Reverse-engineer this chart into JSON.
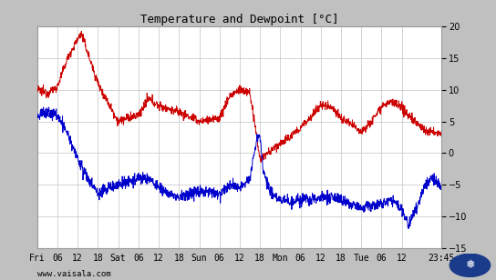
{
  "title": "Temperature and Dewpoint [°C]",
  "bg_color": "#c0c0c0",
  "plot_bg_color": "#ffffff",
  "grid_color": "#cccccc",
  "temp_color": "#cc0000",
  "dewp_color": "#0000cc",
  "ylim": [
    -15,
    20
  ],
  "yticks": [
    -15,
    -10,
    -5,
    0,
    5,
    10,
    15,
    20
  ],
  "xtick_labels": [
    "Fri",
    "06",
    "12",
    "18",
    "Sat",
    "06",
    "12",
    "18",
    "Sun",
    "06",
    "12",
    "18",
    "Mon",
    "06",
    "12",
    "18",
    "Tue",
    "06",
    "12",
    "23:45"
  ],
  "watermark": "www.vaisala.com",
  "line_width": 0.7,
  "num_points": 1440
}
